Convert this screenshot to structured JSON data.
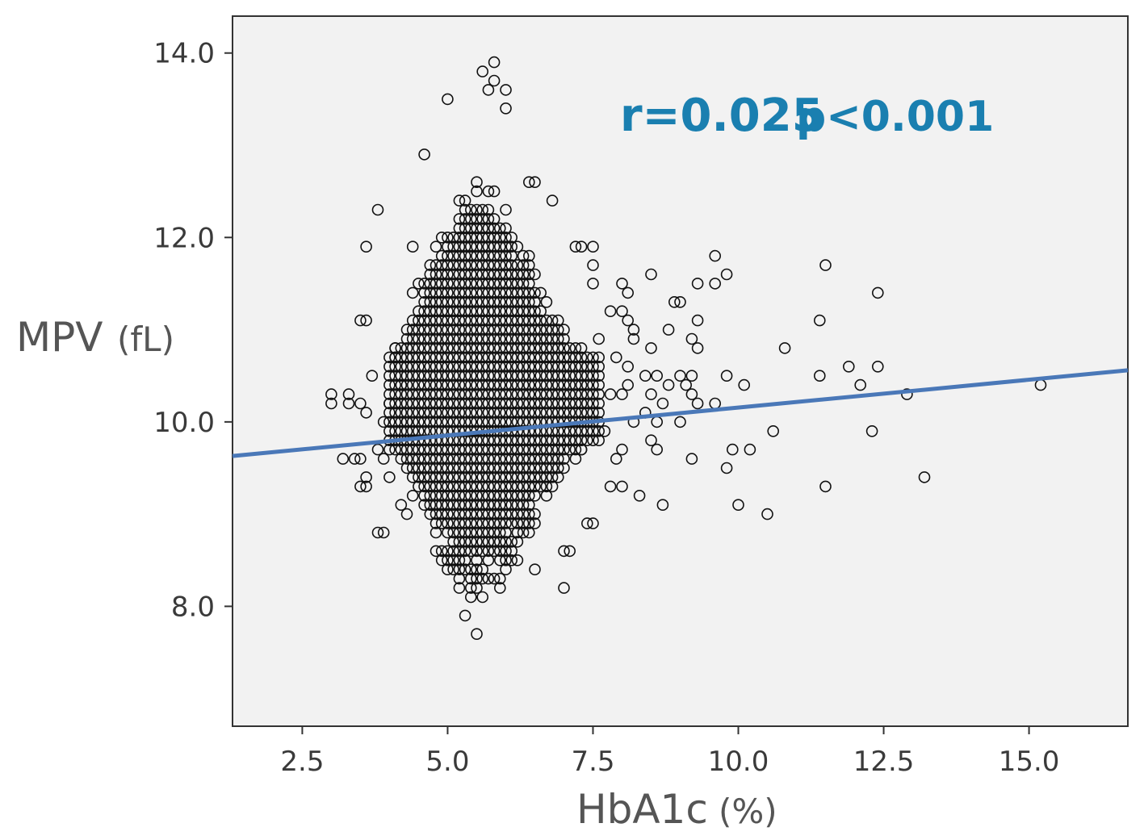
{
  "chart_data": {
    "type": "scatter",
    "xlabel": "HbA1c",
    "xlabel_unit": "(%)",
    "ylabel": "MPV",
    "ylabel_unit": "(fL)",
    "xlim": [
      1.3,
      16.7
    ],
    "ylim": [
      6.7,
      14.4
    ],
    "xticks": [
      2.5,
      5.0,
      7.5,
      10.0,
      12.5,
      15.0
    ],
    "xtick_labels": [
      "2.5",
      "5.0",
      "7.5",
      "10.0",
      "12.5",
      "15.0"
    ],
    "yticks": [
      8.0,
      10.0,
      12.0,
      14.0
    ],
    "ytick_labels": [
      "8.0",
      "10.0",
      "12.0",
      "14.0"
    ],
    "grid": false,
    "annotation": {
      "r_text": "r=0.025",
      "p_text": "p<0.001",
      "color": "#1a7fb0"
    },
    "regression_line": {
      "x": [
        1.3,
        16.7
      ],
      "y": [
        9.63,
        10.56
      ],
      "color": "#4a78b8"
    },
    "marker_color": "#111111",
    "background_color": "#f2f2f2",
    "outliers": [
      [
        3.0,
        10.3
      ],
      [
        3.0,
        10.2
      ],
      [
        3.2,
        9.6
      ],
      [
        3.3,
        10.3
      ],
      [
        3.3,
        10.2
      ],
      [
        3.4,
        9.6
      ],
      [
        3.5,
        9.6
      ],
      [
        3.5,
        10.2
      ],
      [
        3.5,
        9.3
      ],
      [
        3.6,
        9.4
      ],
      [
        3.6,
        10.1
      ],
      [
        3.6,
        9.3
      ],
      [
        3.5,
        11.1
      ],
      [
        3.6,
        11.1
      ],
      [
        3.6,
        11.9
      ],
      [
        3.7,
        10.5
      ],
      [
        3.8,
        12.3
      ],
      [
        3.8,
        8.8
      ],
      [
        3.9,
        8.8
      ],
      [
        3.8,
        9.7
      ],
      [
        3.9,
        9.6
      ],
      [
        3.9,
        10.0
      ],
      [
        4.0,
        10.2
      ],
      [
        4.0,
        9.4
      ],
      [
        4.1,
        10.7
      ],
      [
        4.1,
        10.8
      ],
      [
        4.2,
        10.4
      ],
      [
        4.2,
        9.1
      ],
      [
        4.3,
        9.0
      ],
      [
        4.4,
        11.9
      ],
      [
        4.4,
        11.4
      ],
      [
        4.3,
        10.0
      ],
      [
        4.6,
        12.9
      ],
      [
        5.0,
        13.5
      ],
      [
        5.3,
        7.9
      ],
      [
        5.5,
        7.7
      ],
      [
        5.6,
        13.8
      ],
      [
        5.7,
        13.6
      ],
      [
        5.8,
        13.7
      ],
      [
        5.8,
        13.9
      ],
      [
        6.0,
        13.6
      ],
      [
        6.0,
        13.4
      ],
      [
        6.4,
        12.6
      ],
      [
        6.5,
        12.6
      ],
      [
        6.8,
        12.4
      ],
      [
        6.5,
        8.4
      ],
      [
        7.0,
        8.2
      ],
      [
        7.1,
        8.6
      ],
      [
        7.0,
        8.6
      ],
      [
        7.4,
        8.9
      ],
      [
        7.5,
        8.9
      ],
      [
        7.5,
        11.9
      ],
      [
        7.3,
        11.9
      ],
      [
        7.2,
        11.9
      ],
      [
        7.5,
        11.7
      ],
      [
        7.5,
        11.5
      ],
      [
        7.6,
        10.7
      ],
      [
        7.6,
        10.9
      ],
      [
        7.3,
        9.7
      ],
      [
        7.7,
        9.9
      ],
      [
        7.8,
        10.3
      ],
      [
        7.8,
        11.2
      ],
      [
        7.8,
        9.3
      ],
      [
        7.9,
        9.6
      ],
      [
        7.9,
        10.7
      ],
      [
        8.0,
        11.5
      ],
      [
        8.0,
        11.2
      ],
      [
        8.0,
        10.3
      ],
      [
        8.0,
        9.7
      ],
      [
        8.0,
        9.3
      ],
      [
        8.1,
        10.6
      ],
      [
        8.1,
        11.4
      ],
      [
        8.1,
        11.1
      ],
      [
        8.2,
        11.0
      ],
      [
        8.2,
        10.9
      ],
      [
        8.1,
        10.4
      ],
      [
        8.2,
        10.0
      ],
      [
        8.3,
        9.2
      ],
      [
        8.4,
        10.5
      ],
      [
        8.4,
        10.1
      ],
      [
        8.5,
        11.6
      ],
      [
        8.5,
        10.8
      ],
      [
        8.5,
        10.3
      ],
      [
        8.5,
        9.8
      ],
      [
        8.6,
        10.0
      ],
      [
        8.6,
        10.5
      ],
      [
        8.6,
        9.7
      ],
      [
        8.7,
        10.2
      ],
      [
        8.7,
        9.1
      ],
      [
        8.8,
        11.0
      ],
      [
        8.8,
        10.4
      ],
      [
        8.9,
        11.3
      ],
      [
        9.0,
        11.3
      ],
      [
        9.0,
        10.5
      ],
      [
        9.0,
        10.0
      ],
      [
        9.1,
        10.4
      ],
      [
        9.2,
        10.5
      ],
      [
        9.2,
        10.9
      ],
      [
        9.2,
        10.3
      ],
      [
        9.2,
        9.6
      ],
      [
        9.3,
        11.5
      ],
      [
        9.3,
        11.1
      ],
      [
        9.3,
        10.8
      ],
      [
        9.3,
        10.2
      ],
      [
        9.6,
        11.8
      ],
      [
        9.6,
        11.5
      ],
      [
        9.6,
        10.2
      ],
      [
        9.8,
        11.6
      ],
      [
        9.8,
        10.5
      ],
      [
        9.8,
        9.5
      ],
      [
        9.9,
        9.7
      ],
      [
        10.0,
        9.1
      ],
      [
        10.1,
        10.4
      ],
      [
        10.2,
        9.7
      ],
      [
        10.5,
        9.0
      ],
      [
        10.6,
        9.9
      ],
      [
        10.8,
        10.8
      ],
      [
        11.4,
        11.1
      ],
      [
        11.4,
        10.5
      ],
      [
        11.5,
        11.7
      ],
      [
        11.5,
        9.3
      ],
      [
        11.9,
        10.6
      ],
      [
        12.1,
        10.4
      ],
      [
        12.3,
        9.9
      ],
      [
        12.4,
        11.4
      ],
      [
        12.4,
        10.6
      ],
      [
        12.9,
        10.3
      ],
      [
        13.2,
        9.4
      ],
      [
        15.2,
        10.4
      ]
    ]
  }
}
